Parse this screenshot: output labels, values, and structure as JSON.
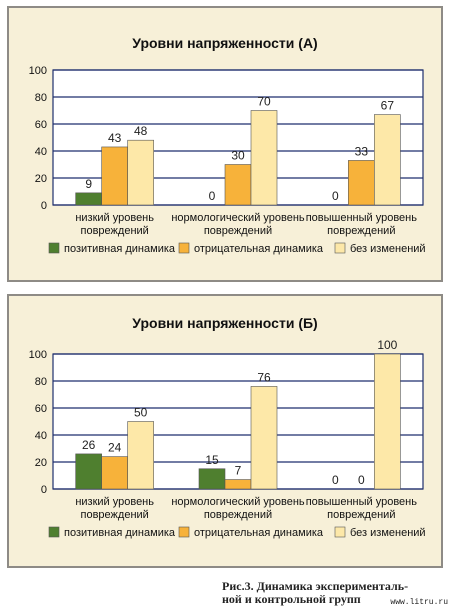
{
  "colors": {
    "panel_bg": "#f7f0d8",
    "plot_bg": "#ffffff",
    "border": "#8e8b86",
    "grid": "#1f2f6e",
    "series": [
      "#4f7f2f",
      "#f7b23a",
      "#fde8a8"
    ]
  },
  "chart_data": [
    {
      "type": "bar",
      "title": "Уровни напряженности (А)",
      "categories": [
        [
          "низкий уровень",
          "повреждений"
        ],
        [
          "нормологический уровень",
          "повреждений"
        ],
        [
          "повышенный уровень",
          "повреждений"
        ]
      ],
      "series": [
        {
          "name": "позитивная динамика",
          "values": [
            9,
            0,
            0
          ]
        },
        {
          "name": "отрицательная динамика",
          "values": [
            43,
            30,
            33
          ]
        },
        {
          "name": "без изменений",
          "values": [
            48,
            70,
            67
          ]
        }
      ],
      "ylim": [
        0,
        100
      ],
      "yticks": [
        0,
        20,
        40,
        60,
        80,
        100
      ],
      "grid": true,
      "legend": "bottom"
    },
    {
      "type": "bar",
      "title": "Уровни напряженности (Б)",
      "categories": [
        [
          "низкий уровень",
          "повреждений"
        ],
        [
          "нормологический уровень",
          "повреждений"
        ],
        [
          "повышенный уровень",
          "повреждений"
        ]
      ],
      "series": [
        {
          "name": "позитивная динамика",
          "values": [
            26,
            15,
            0
          ]
        },
        {
          "name": "отрицательная динамика",
          "values": [
            24,
            7,
            0
          ]
        },
        {
          "name": "без изменений",
          "values": [
            50,
            76,
            100
          ]
        }
      ],
      "ylim": [
        0,
        100
      ],
      "yticks": [
        0,
        20,
        40,
        60,
        80,
        100
      ],
      "grid": true,
      "legend": "bottom"
    }
  ],
  "caption": {
    "line1": "Рис.3. Динамика эксперименталь-",
    "line2": "ной и контрольной групп"
  },
  "watermark": "www.litru.ru"
}
